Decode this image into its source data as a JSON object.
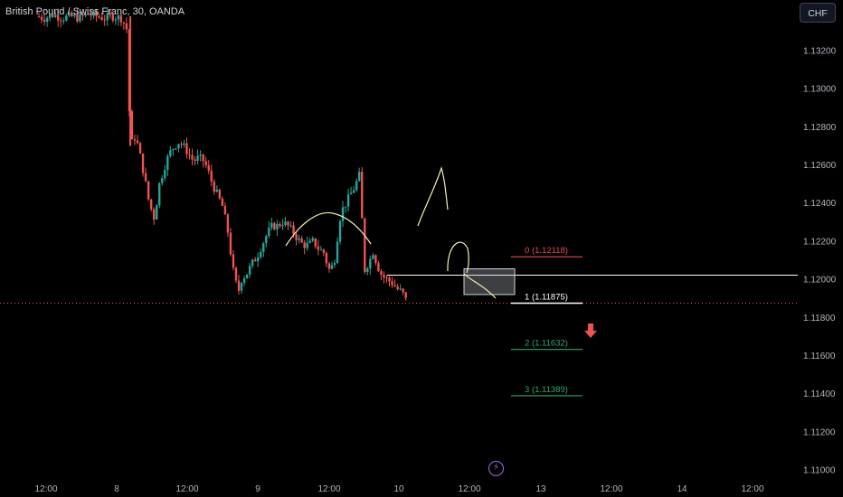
{
  "header": {
    "symbol_title": "British Pound / Swiss Franc, 30, OANDA",
    "currency_button": "CHF"
  },
  "colors": {
    "bull": "#26a69a",
    "bear": "#ef5350",
    "fib_zero": "#e24b4b",
    "fib_one": "#ffffff",
    "fib_target": "#2fa86a",
    "arc": "#f3f0b4",
    "zone": "#b2b5be",
    "hline": "#ffffff",
    "arrow": "#ef5350",
    "price_dotted": "#ef5350"
  },
  "icons": {
    "down_arrow": "down-arrow-icon",
    "lightning": "lightning-icon"
  },
  "chart_data": {
    "type": "candlestick",
    "instrument": "GBPCHF",
    "timeframe": "30",
    "y_axis": {
      "ticks": [
        "1.13200",
        "1.13000",
        "1.12800",
        "1.12600",
        "1.12400",
        "1.12200",
        "1.12000",
        "1.11800",
        "1.11600",
        "1.11400",
        "1.11200",
        "1.11000"
      ]
    },
    "x_axis": {
      "ticks": [
        "12:00",
        "8",
        "12:00",
        "9",
        "12:00",
        "10",
        "12:00",
        "13",
        "12:00",
        "14",
        "12:00"
      ]
    },
    "current_price_level": 1.11875,
    "horizontal_line_level": 1.12022,
    "zone": {
      "top": 1.12055,
      "bottom": 1.1192
    },
    "fib_levels": [
      {
        "index": "0",
        "value": "1.12118",
        "label": "0 (1.12118)"
      },
      {
        "index": "1",
        "value": "1.11875",
        "label": "1 (1.11875)"
      },
      {
        "index": "2",
        "value": "1.11632",
        "label": "2 (1.11632)"
      },
      {
        "index": "3",
        "value": "1.11389",
        "label": "3 (1.11389)"
      }
    ],
    "price_path": [
      [
        0,
        1.1338
      ],
      [
        0.5,
        1.1337
      ],
      [
        1,
        1.1339
      ],
      [
        1.5,
        1.1337
      ],
      [
        2,
        1.1338
      ],
      [
        2.5,
        1.1337
      ],
      [
        3,
        1.1339
      ],
      [
        3.5,
        1.1338
      ],
      [
        4,
        1.1337
      ],
      [
        4.5,
        1.1338
      ],
      [
        5,
        1.1337
      ],
      [
        5.3,
        1.1331
      ],
      [
        5.5,
        1.127
      ],
      [
        5.8,
        1.1275
      ],
      [
        6,
        1.1268
      ],
      [
        6.3,
        1.1255
      ],
      [
        6.6,
        1.124
      ],
      [
        6.9,
        1.1232
      ],
      [
        7.2,
        1.125
      ],
      [
        7.6,
        1.1262
      ],
      [
        7.9,
        1.1268
      ],
      [
        8.3,
        1.1272
      ],
      [
        8.6,
        1.127
      ],
      [
        8.9,
        1.1266
      ],
      [
        9.2,
        1.1262
      ],
      [
        9.5,
        1.1264
      ],
      [
        9.8,
        1.1262
      ],
      [
        10,
        1.1258
      ],
      [
        10.3,
        1.125
      ],
      [
        10.6,
        1.1244
      ],
      [
        10.9,
        1.1238
      ],
      [
        11.2,
        1.1225
      ],
      [
        11.5,
        1.1205
      ],
      [
        11.8,
        1.1193
      ],
      [
        12,
        1.12
      ],
      [
        12.3,
        1.1203
      ],
      [
        12.6,
        1.1208
      ],
      [
        12.9,
        1.1212
      ],
      [
        13.2,
        1.1218
      ],
      [
        13.5,
        1.1224
      ],
      [
        13.8,
        1.1228
      ],
      [
        14.1,
        1.1228
      ],
      [
        14.4,
        1.123
      ],
      [
        14.7,
        1.1228
      ],
      [
        15,
        1.1225
      ],
      [
        15.3,
        1.1221
      ],
      [
        15.6,
        1.1218
      ],
      [
        15.9,
        1.1218
      ],
      [
        16.2,
        1.122
      ],
      [
        16.5,
        1.1216
      ],
      [
        16.8,
        1.1214
      ],
      [
        17.1,
        1.1205
      ],
      [
        17.4,
        1.1208
      ],
      [
        17.6,
        1.1222
      ],
      [
        17.8,
        1.1235
      ],
      [
        18.1,
        1.124
      ],
      [
        18.4,
        1.1245
      ],
      [
        18.7,
        1.125
      ],
      [
        18.85,
        1.1258
      ],
      [
        19,
        1.124
      ],
      [
        19.1,
        1.1218
      ],
      [
        19.2,
        1.1205
      ],
      [
        19.5,
        1.121
      ],
      [
        19.7,
        1.1215
      ],
      [
        19.9,
        1.1208
      ],
      [
        20.2,
        1.1202
      ],
      [
        20.5,
        1.12
      ],
      [
        20.8,
        1.1198
      ],
      [
        21.1,
        1.1195
      ],
      [
        21.4,
        1.1193
      ],
      [
        21.6,
        1.1189
      ]
    ]
  }
}
